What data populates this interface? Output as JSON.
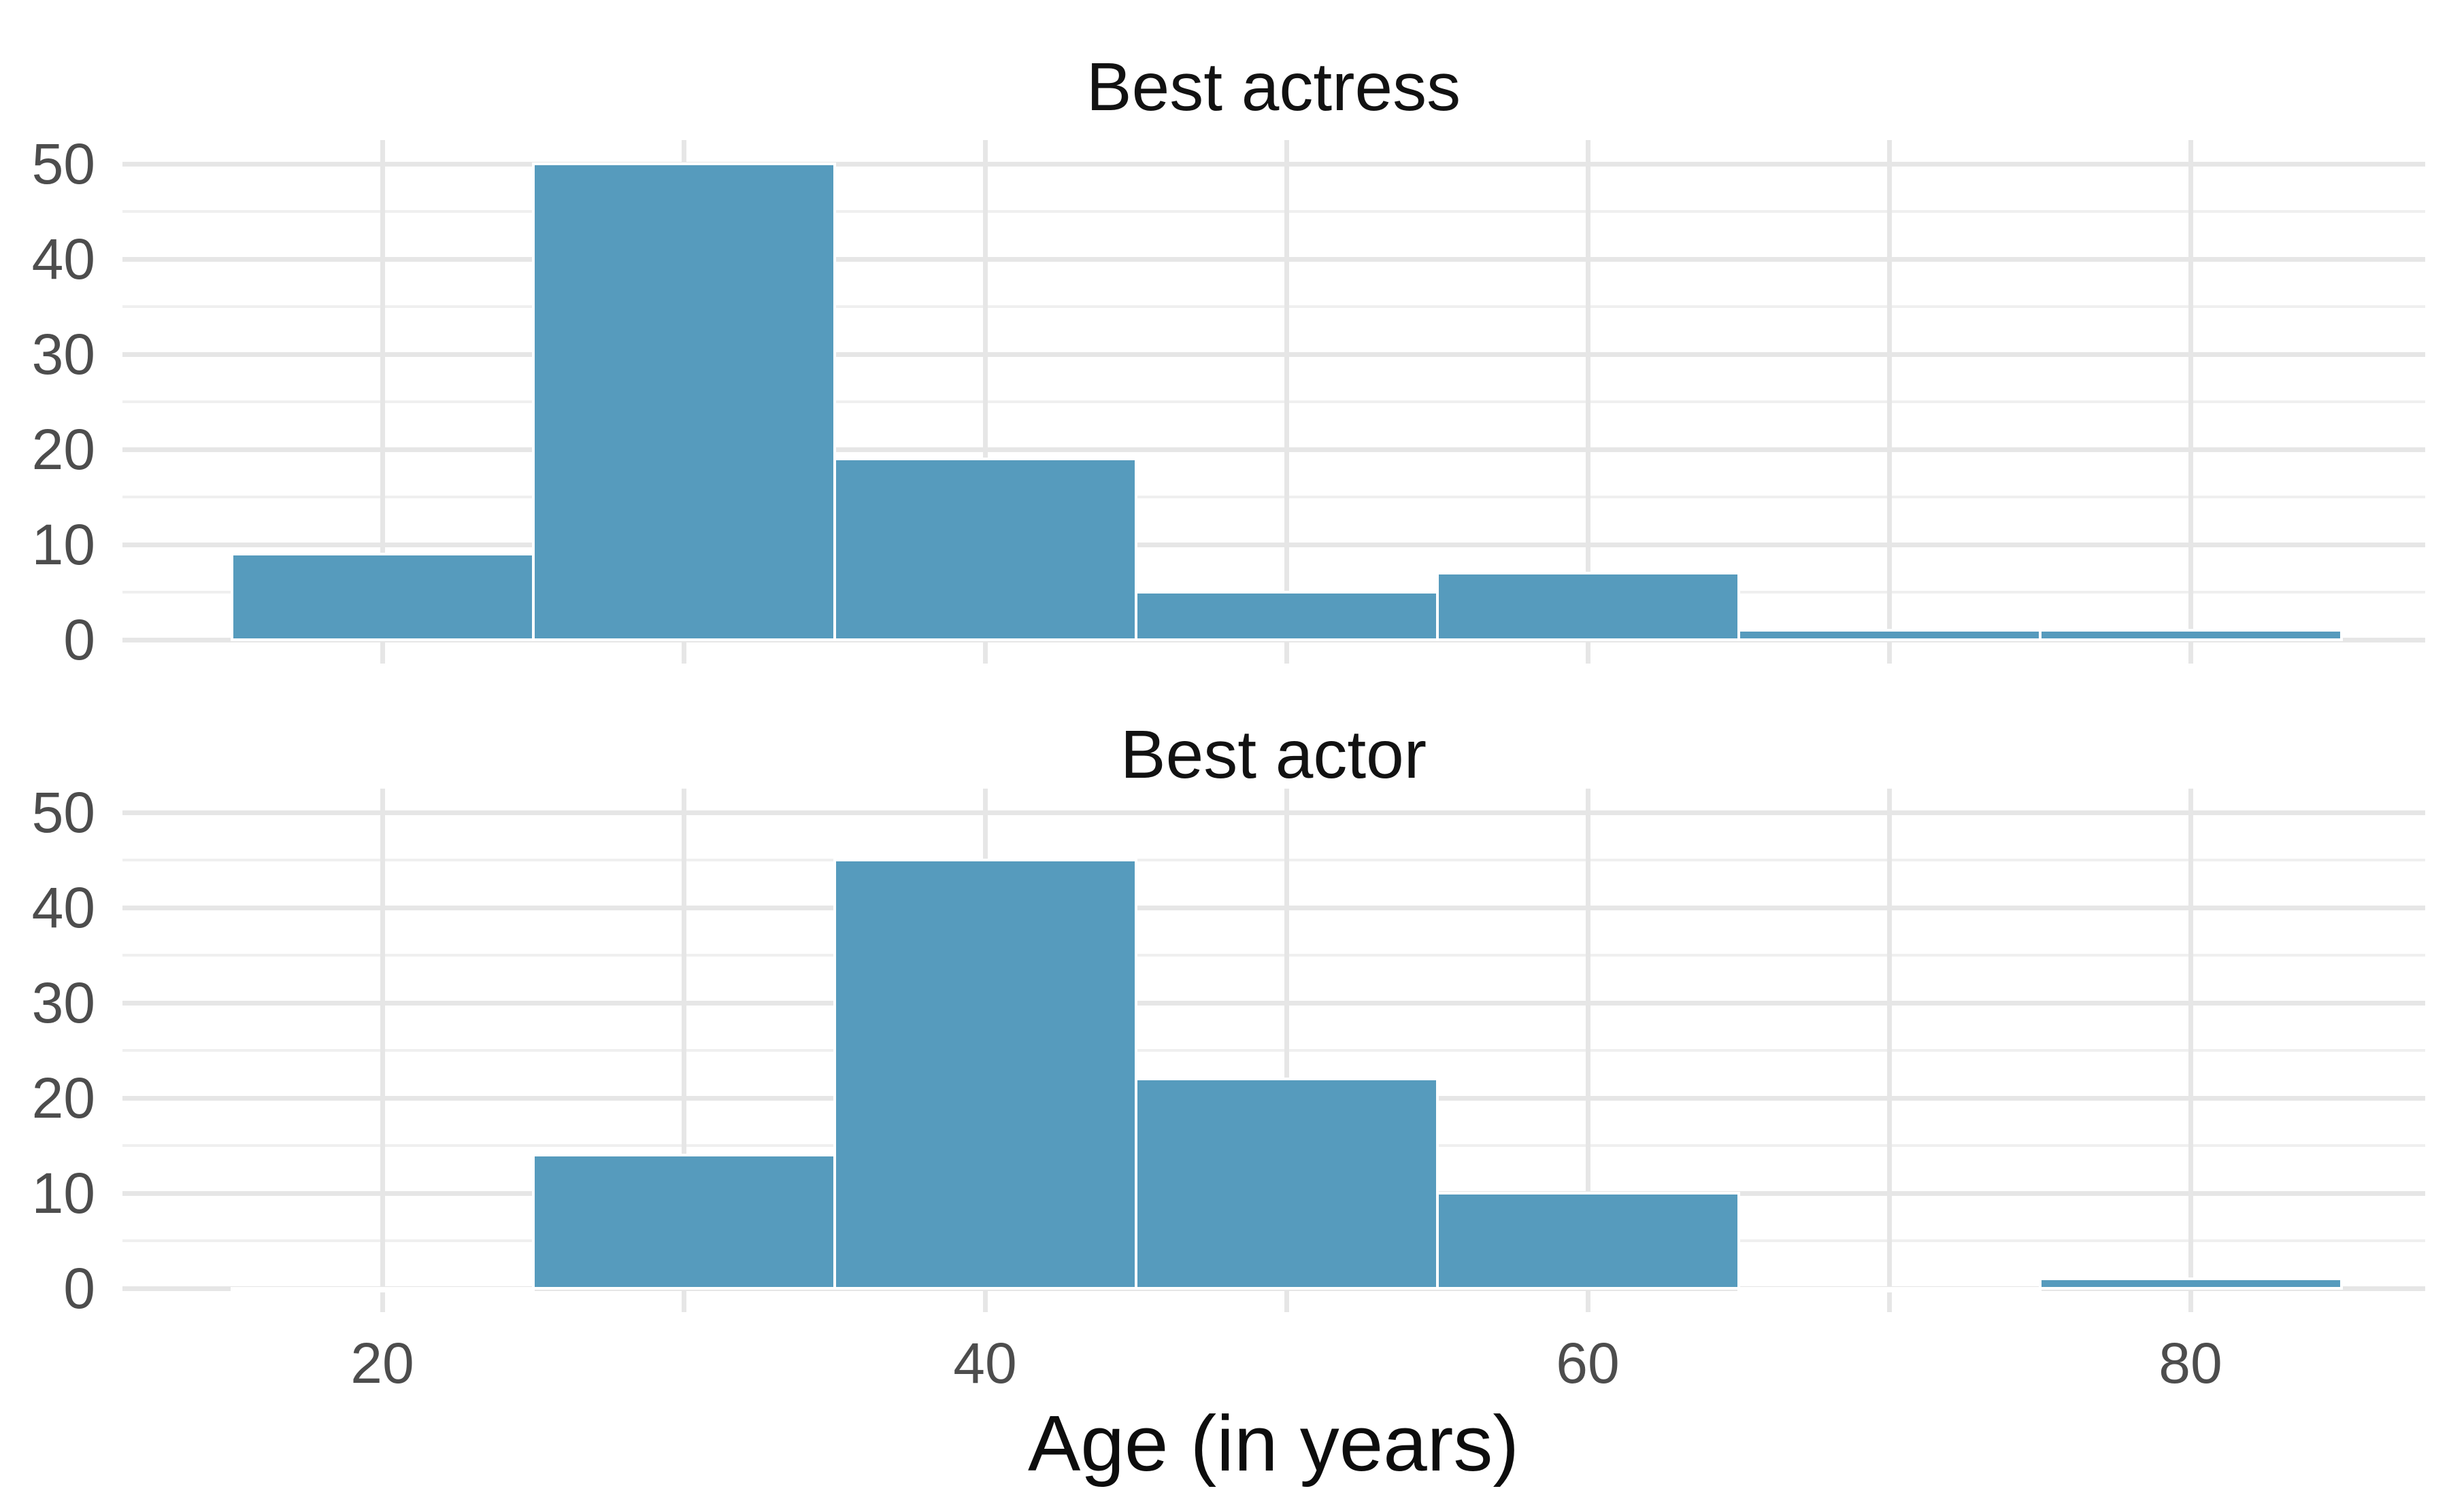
{
  "figure": {
    "background": "#ffffff",
    "kind": "faceted histogram, 2 rows, shared x axis"
  },
  "chart_data": [
    {
      "type": "bar",
      "subtype": "histogram",
      "title": "Best actress",
      "bin_edges": [
        15,
        25,
        35,
        45,
        55,
        65,
        75,
        85
      ],
      "counts": [
        9,
        50,
        19,
        5,
        7,
        1,
        1
      ],
      "bar_color": "#569BBD",
      "bar_border_color": "#ffffff",
      "ylim": [
        -2.5,
        52.5
      ],
      "grid": "on"
    },
    {
      "type": "bar",
      "subtype": "histogram",
      "title": "Best actor",
      "bin_edges": [
        15,
        25,
        35,
        45,
        55,
        65,
        75,
        85
      ],
      "counts": [
        0,
        14,
        45,
        22,
        10,
        0,
        1
      ],
      "bar_color": "#569BBD",
      "bar_border_color": "#ffffff",
      "ylim": [
        -2.5,
        52.5
      ],
      "grid": "on"
    }
  ],
  "axes": {
    "xlabel": "Age (in years)",
    "x_tick_labels": [
      "20",
      "40",
      "60",
      "80"
    ],
    "x_tick_values": [
      20,
      40,
      60,
      80
    ],
    "x_gridline_values": [
      20,
      30,
      40,
      50,
      60,
      70,
      80
    ],
    "y_tick_labels": [
      "0",
      "10",
      "20",
      "30",
      "40",
      "50"
    ],
    "y_tick_values": [
      0,
      10,
      20,
      30,
      40,
      50
    ],
    "y_minor_gridline_values": [
      5,
      15,
      25,
      35,
      45
    ],
    "xlim": [
      11.4,
      87.8
    ]
  },
  "colors": {
    "bar_fill": "#569BBD",
    "bar_stroke": "#ffffff",
    "grid_major": "#e6e6e6",
    "grid_minor": "#efefef",
    "tick_text": "#4d4d4d",
    "title_text": "#121212",
    "axis_title_text": "#0d0d0d",
    "background": "#ffffff"
  }
}
